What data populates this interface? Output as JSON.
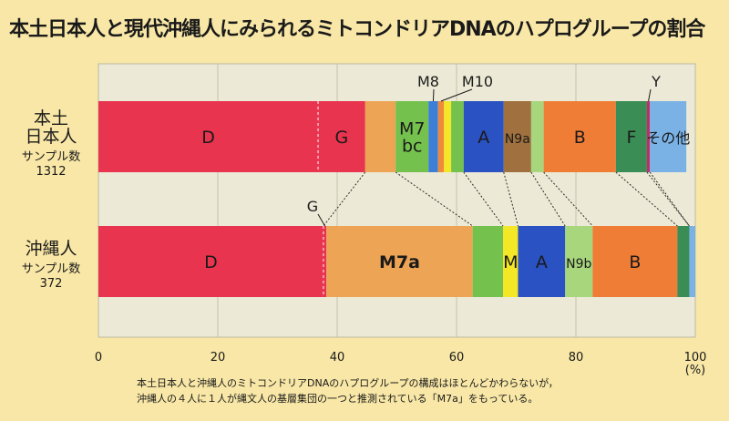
{
  "chart_data": {
    "type": "bar",
    "orientation": "horizontal-stacked-100",
    "title": "本土日本人と現代沖縄人にみられるミトコンドリアDNAのハプログループの割合",
    "xunit": "(%)",
    "xlim": [
      0,
      100
    ],
    "xticks": [
      0,
      20,
      40,
      60,
      80,
      100
    ],
    "grid": true,
    "rows": [
      {
        "label_lines": [
          "本土",
          "日本人",
          "サンプル数",
          "1312"
        ],
        "segments": [
          {
            "label": "D",
            "value": 36.8,
            "color": "#e8344e",
            "connector": false
          },
          {
            "label": "G",
            "value": 7.9,
            "color": "#e8344e",
            "connector": true
          },
          {
            "label": "",
            "value": 5.1,
            "color": "#eea455",
            "connector": true
          },
          {
            "label": "M7 bc",
            "value": 5.5,
            "color": "#74c24d",
            "connector": false
          },
          {
            "label": "",
            "value": 1.6,
            "color": "#3d7fd6",
            "connector": true
          },
          {
            "label": "",
            "value": 1.0,
            "color": "#ef8a3c",
            "connector": true
          },
          {
            "label": "",
            "value": 1.2,
            "color": "#f3e726",
            "connector": true
          },
          {
            "label": "",
            "value": 2.1,
            "color": "#74c24d",
            "connector": true
          },
          {
            "label": "A",
            "value": 6.7,
            "color": "#2a52c2",
            "connector": true
          },
          {
            "label": "N9a",
            "value": 4.6,
            "color": "#a0713e",
            "connector": false
          },
          {
            "label": "",
            "value": 2.1,
            "color": "#a7d67c",
            "connector": true
          },
          {
            "label": "B",
            "value": 12.1,
            "color": "#f07d36",
            "connector": true
          },
          {
            "label": "F",
            "value": 5.2,
            "color": "#3a8d54",
            "connector": true
          },
          {
            "label": "",
            "value": 0.5,
            "color": "#c02e6a",
            "connector": true
          },
          {
            "label": "その他",
            "value": 6.1,
            "color": "#7bb2e6",
            "connector": false
          }
        ]
      },
      {
        "label_lines": [
          "沖縄人",
          "サンプル数",
          "372"
        ],
        "segments": [
          {
            "label": "D",
            "value": 37.7,
            "color": "#e8344e",
            "connector": false
          },
          {
            "label": "",
            "value": 0.5,
            "color": "#e8344e",
            "connector": false
          },
          {
            "label": "M7a",
            "value": 24.5,
            "color": "#eea455",
            "connector": false
          },
          {
            "label": "",
            "value": 5.1,
            "color": "#74c24d",
            "connector": false
          },
          {
            "label": "M",
            "value": 2.5,
            "color": "#f3e726",
            "connector": false
          },
          {
            "label": "A",
            "value": 7.9,
            "color": "#2a52c2",
            "connector": false
          },
          {
            "label": "N9b",
            "value": 4.6,
            "color": "#a7d67c",
            "connector": false
          },
          {
            "label": "B",
            "value": 14.2,
            "color": "#f07d36",
            "connector": false
          },
          {
            "label": "",
            "value": 2.0,
            "color": "#3a8d54",
            "connector": false
          },
          {
            "label": "",
            "value": 1.0,
            "color": "#7bb2e6",
            "connector": false
          }
        ]
      }
    ],
    "callouts": [
      "M8",
      "M10",
      "Y",
      "G"
    ],
    "caption": [
      "本土日本人と沖縄人のミトコンドリアDNAのハプログループの構成はほとんどかわらないが，",
      "沖縄人の４人に１人が縄文人の基層集団の一つと推測されている「M7a」をもっている。"
    ]
  }
}
